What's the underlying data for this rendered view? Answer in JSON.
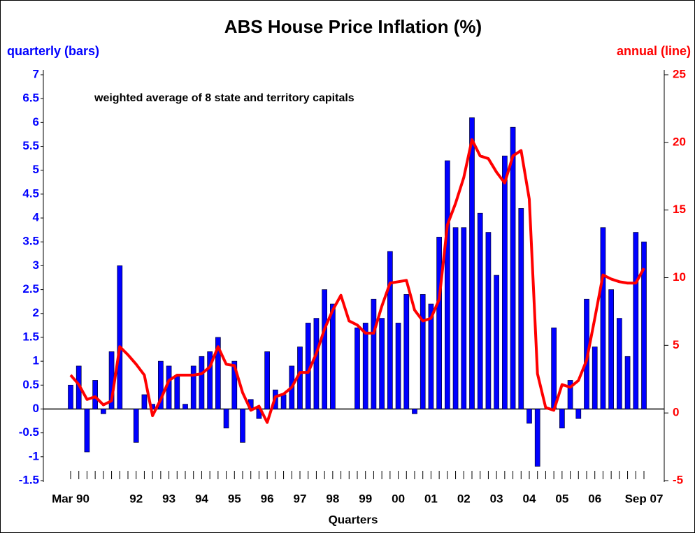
{
  "chart_data": {
    "type": "bar_line",
    "title": "ABS House Price Inflation (%)",
    "y_label": "quarterly (bars)",
    "y2_label": "annual (line)",
    "x_label": "Quarters",
    "annotation": "weighted average of 8 state and territory capitals",
    "categories": [
      "Mar 90",
      null,
      null,
      null,
      null,
      null,
      null,
      null,
      "92",
      null,
      null,
      null,
      "93",
      null,
      null,
      null,
      "94",
      null,
      null,
      null,
      "95",
      null,
      null,
      null,
      "96",
      null,
      null,
      null,
      "97",
      null,
      null,
      null,
      "98",
      null,
      null,
      null,
      "99",
      null,
      null,
      null,
      "00",
      null,
      null,
      null,
      "01",
      null,
      null,
      null,
      "02",
      null,
      null,
      null,
      "03",
      null,
      null,
      null,
      "04",
      null,
      null,
      null,
      "05",
      null,
      null,
      null,
      "06",
      null,
      null,
      null,
      null,
      null,
      "Sep 07"
    ],
    "series": [
      {
        "name": "quarterly",
        "type": "bar",
        "color": "#0000ff",
        "axis": "y",
        "values": [
          0.5,
          0.9,
          -0.9,
          0.6,
          -0.1,
          1.2,
          3.0,
          0,
          -0.7,
          0.3,
          0.1,
          1.0,
          0.9,
          0.7,
          0.1,
          0.9,
          1.1,
          1.2,
          1.5,
          -0.4,
          1.0,
          -0.7,
          0.2,
          -0.2,
          1.2,
          0.4,
          0.3,
          0.9,
          1.3,
          1.8,
          1.9,
          2.5,
          2.2,
          0,
          0,
          1.7,
          1.8,
          2.3,
          1.9,
          3.3,
          1.8,
          2.4,
          -0.1,
          2.4,
          2.2,
          3.6,
          5.2,
          3.8,
          3.8,
          6.1,
          4.1,
          3.7,
          2.8,
          5.3,
          5.9,
          4.2,
          -0.3,
          -1.2,
          0,
          1.7,
          -0.4,
          0.6,
          -0.2,
          2.3,
          1.3,
          3.8,
          2.5,
          1.9,
          1.1,
          3.7,
          3.5
        ]
      },
      {
        "name": "annual",
        "type": "line",
        "color": "#ff0000",
        "axis": "y2",
        "values": [
          2.8,
          2.1,
          1.0,
          1.2,
          0.6,
          0.9,
          4.9,
          4.3,
          3.6,
          2.8,
          -0.2,
          1.0,
          2.4,
          2.8,
          2.8,
          2.8,
          2.9,
          3.4,
          4.9,
          3.6,
          3.5,
          1.5,
          0.2,
          0.5,
          -0.7,
          1.2,
          1.4,
          1.9,
          3.0,
          3.0,
          4.4,
          6.2,
          7.6,
          8.7,
          6.8,
          6.5,
          5.9,
          5.9,
          7.9,
          9.6,
          9.7,
          9.8,
          7.6,
          6.8,
          7.0,
          8.4,
          13.9,
          15.5,
          17.4,
          20.2,
          19.0,
          18.8,
          17.8,
          17.0,
          19.0,
          19.4,
          15.8,
          2.9,
          0.4,
          0.2,
          2.1,
          1.9,
          2.4,
          3.9,
          7.0,
          10.2,
          9.9,
          9.7,
          9.6,
          9.6,
          10.7
        ]
      }
    ],
    "ylim": [
      -1.5,
      7
    ],
    "yticks": [
      -1.5,
      -1,
      -0.5,
      0,
      0.5,
      1,
      1.5,
      2,
      2.5,
      3,
      3.5,
      4,
      4.5,
      5,
      5.5,
      6,
      6.5,
      7
    ],
    "y2lim": [
      -5,
      25
    ],
    "y2ticks": [
      -5,
      0,
      5,
      10,
      15,
      20,
      25
    ]
  }
}
